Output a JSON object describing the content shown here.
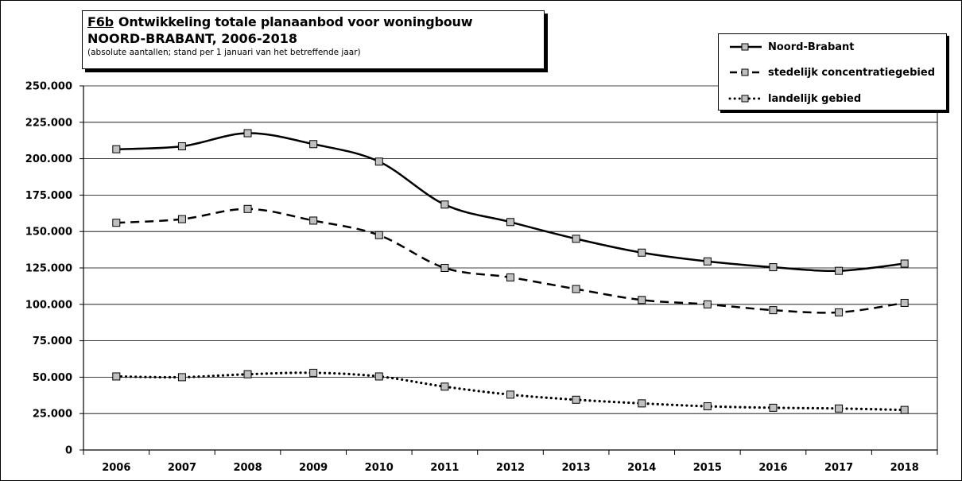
{
  "title": {
    "code": "F6b",
    "line1": "Ontwikkeling totale planaanbod voor woningbouw",
    "line2": "NOORD-BRABANT, 2006-2018",
    "subtitle": "(absolute aantallen; stand per 1 januari van het betreffende jaar)"
  },
  "chart_data": {
    "type": "line",
    "categories": [
      "2006",
      "2007",
      "2008",
      "2009",
      "2010",
      "2011",
      "2012",
      "2013",
      "2014",
      "2015",
      "2016",
      "2017",
      "2018"
    ],
    "ylim": [
      0,
      250000
    ],
    "yticks": [
      {
        "value": 250000,
        "label": "250.000"
      },
      {
        "value": 225000,
        "label": "225.000"
      },
      {
        "value": 200000,
        "label": "200.000"
      },
      {
        "value": 175000,
        "label": "175.000"
      },
      {
        "value": 150000,
        "label": "150.000"
      },
      {
        "value": 125000,
        "label": "125.000"
      },
      {
        "value": 100000,
        "label": "100.000"
      },
      {
        "value": 75000,
        "label": "75.000"
      },
      {
        "value": 50000,
        "label": "50.000"
      },
      {
        "value": 25000,
        "label": "25.000"
      },
      {
        "value": 0,
        "label": "0"
      }
    ],
    "grid": true,
    "legend_position": "top-right",
    "plot_background": "#ffffff",
    "marker_color": "#c0c0c0",
    "series": [
      {
        "name": "Noord-Brabant",
        "style": "solid",
        "values": [
          206500,
          208500,
          217500,
          210000,
          198000,
          168500,
          156500,
          145000,
          135500,
          129500,
          125500,
          123000,
          128000
        ]
      },
      {
        "name": "stedelijk concentratiegebied",
        "style": "dashed",
        "values": [
          156000,
          158500,
          165500,
          157500,
          147500,
          125000,
          118500,
          110500,
          103000,
          100000,
          96000,
          94500,
          101000
        ]
      },
      {
        "name": "landelijk gebied",
        "style": "dotted",
        "values": [
          50500,
          50000,
          52000,
          53000,
          50500,
          43500,
          38000,
          34500,
          32000,
          30000,
          29000,
          28500,
          27500
        ]
      }
    ]
  }
}
